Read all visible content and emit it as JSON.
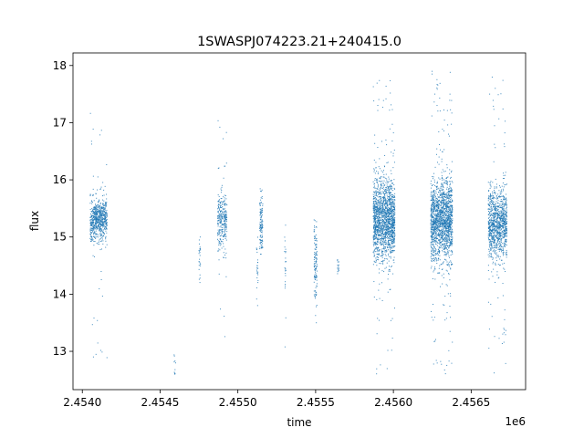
{
  "chart_data": {
    "type": "scatter",
    "title": "1SWASPJ074223.21+240415.0",
    "xlabel": "time",
    "ylabel": "flux",
    "x_offset_label": "1e6",
    "xlim": [
      2.45394,
      2.45685
    ],
    "ylim": [
      12.33,
      18.22
    ],
    "x_ticks": [
      2.454,
      2.4545,
      2.455,
      2.4555,
      2.456,
      2.4565
    ],
    "x_tick_labels": [
      "2.4540",
      "2.4545",
      "2.4550",
      "2.4555",
      "2.4560",
      "2.4565"
    ],
    "y_ticks": [
      13,
      14,
      15,
      16,
      17,
      18
    ],
    "y_tick_labels": [
      "13",
      "14",
      "15",
      "16",
      "17",
      "18"
    ],
    "grid": false,
    "legend": false,
    "point_color": "#1f77b4",
    "series": [
      {
        "clusters": [
          {
            "x_start": 2.45405,
            "x_end": 2.45416,
            "center": 15.3,
            "spread": 0.18,
            "outlier_min": 12.6,
            "outlier_max": 17.3,
            "count": 700
          },
          {
            "x_start": 2.45459,
            "x_end": 2.4546,
            "center": 12.7,
            "spread": 0.12,
            "outlier_min": 12.6,
            "outlier_max": 13.0,
            "count": 10
          },
          {
            "x_start": 2.45475,
            "x_end": 2.45476,
            "center": 14.6,
            "spread": 0.25,
            "outlier_min": 14.2,
            "outlier_max": 15.0,
            "count": 25
          },
          {
            "x_start": 2.45487,
            "x_end": 2.45493,
            "center": 15.3,
            "spread": 0.25,
            "outlier_min": 13.2,
            "outlier_max": 17.2,
            "count": 300
          },
          {
            "x_start": 2.45512,
            "x_end": 2.45513,
            "center": 14.4,
            "spread": 0.3,
            "outlier_min": 13.8,
            "outlier_max": 15.0,
            "count": 25
          },
          {
            "x_start": 2.45514,
            "x_end": 2.45516,
            "center": 15.2,
            "spread": 0.3,
            "outlier_min": 14.7,
            "outlier_max": 16.3,
            "count": 120
          },
          {
            "x_start": 2.4553,
            "x_end": 2.45531,
            "center": 14.5,
            "spread": 0.25,
            "outlier_min": 12.7,
            "outlier_max": 15.4,
            "count": 25
          },
          {
            "x_start": 2.45549,
            "x_end": 2.45551,
            "center": 14.6,
            "spread": 0.35,
            "outlier_min": 13.5,
            "outlier_max": 15.3,
            "count": 120
          },
          {
            "x_start": 2.45564,
            "x_end": 2.45565,
            "center": 14.5,
            "spread": 0.1,
            "outlier_min": 14.3,
            "outlier_max": 14.7,
            "count": 15
          },
          {
            "x_start": 2.45587,
            "x_end": 2.45601,
            "center": 15.3,
            "spread": 0.35,
            "outlier_min": 12.6,
            "outlier_max": 17.8,
            "count": 1700
          },
          {
            "x_start": 2.45624,
            "x_end": 2.45638,
            "center": 15.3,
            "spread": 0.35,
            "outlier_min": 12.6,
            "outlier_max": 17.95,
            "count": 1700
          },
          {
            "x_start": 2.45661,
            "x_end": 2.45673,
            "center": 15.25,
            "spread": 0.3,
            "outlier_min": 12.6,
            "outlier_max": 17.9,
            "count": 1100
          }
        ]
      }
    ]
  }
}
